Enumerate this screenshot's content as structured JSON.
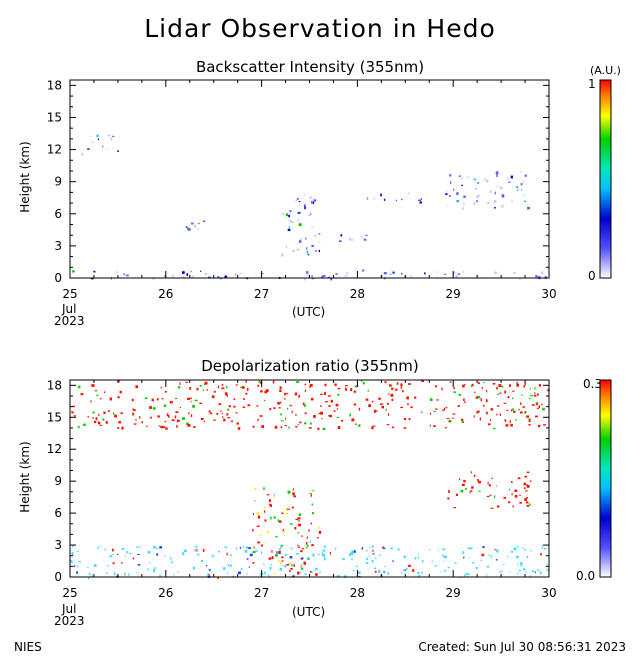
{
  "title": "Lidar Observation in Hedo",
  "footer": {
    "org": "NIES",
    "created": "Created: Sun Jul 30 08:56:31 2023"
  },
  "chart_data": [
    {
      "type": "heatmap",
      "title": "Backscatter Intensity (355nm)",
      "xlabel": "(UTC)",
      "ylabel": "Height (km)",
      "x_ticks": [
        "25",
        "26",
        "27",
        "28",
        "29",
        "30"
      ],
      "x_sublabels": [
        "Jul",
        "2023"
      ],
      "xlim": [
        "25",
        "30"
      ],
      "y_ticks": [
        0,
        3,
        6,
        9,
        12,
        15,
        18
      ],
      "ylim": [
        0,
        18.5
      ],
      "colorbar": {
        "min_label": "0",
        "max_label": "1",
        "unit": "(A.U.)"
      },
      "layers": [
        {
          "name": "boundary-layer",
          "day_start": 25.0,
          "day_end": 30.0,
          "height_min": 0,
          "height_max": 0.8
        },
        {
          "name": "cirrus-early",
          "day_start": 25.1,
          "day_end": 25.5,
          "height_min": 11.5,
          "height_max": 13.5
        },
        {
          "name": "mid-cloud-26",
          "day_start": 26.1,
          "day_end": 26.4,
          "height_min": 4.5,
          "height_max": 5.5
        },
        {
          "name": "convective-27",
          "day_start": 27.2,
          "day_end": 27.6,
          "height_min": 2,
          "height_max": 8
        },
        {
          "name": "mid-cloud-28",
          "day_start": 27.8,
          "day_end": 28.1,
          "height_min": 3.5,
          "height_max": 4.2
        },
        {
          "name": "layer-28-29",
          "day_start": 28.1,
          "day_end": 28.7,
          "height_min": 7,
          "height_max": 8
        },
        {
          "name": "upper-29",
          "day_start": 28.9,
          "day_end": 29.8,
          "height_min": 6.5,
          "height_max": 10
        }
      ]
    },
    {
      "type": "heatmap",
      "title": "Depolarization ratio (355nm)",
      "xlabel": "(UTC)",
      "ylabel": "Height (km)",
      "x_ticks": [
        "25",
        "26",
        "27",
        "28",
        "29",
        "30"
      ],
      "x_sublabels": [
        "Jul",
        "2023"
      ],
      "xlim": [
        "25",
        "30"
      ],
      "y_ticks": [
        0,
        3,
        6,
        9,
        12,
        15,
        18
      ],
      "ylim": [
        0,
        18.5
      ],
      "colorbar": {
        "min_label": "0.0",
        "max_label": "0.3"
      },
      "layers": [
        {
          "name": "aerosol-low",
          "day_start": 25.0,
          "day_end": 30.0,
          "height_min": 0,
          "height_max": 3
        },
        {
          "name": "cirrus-upper",
          "day_start": 25.0,
          "day_end": 30.0,
          "height_min": 14,
          "height_max": 18.5
        },
        {
          "name": "convective-27",
          "day_start": 26.9,
          "day_end": 27.6,
          "height_min": 0,
          "height_max": 8.5
        },
        {
          "name": "upper-29",
          "day_start": 28.9,
          "day_end": 29.8,
          "height_min": 6.5,
          "height_max": 10
        }
      ]
    }
  ]
}
